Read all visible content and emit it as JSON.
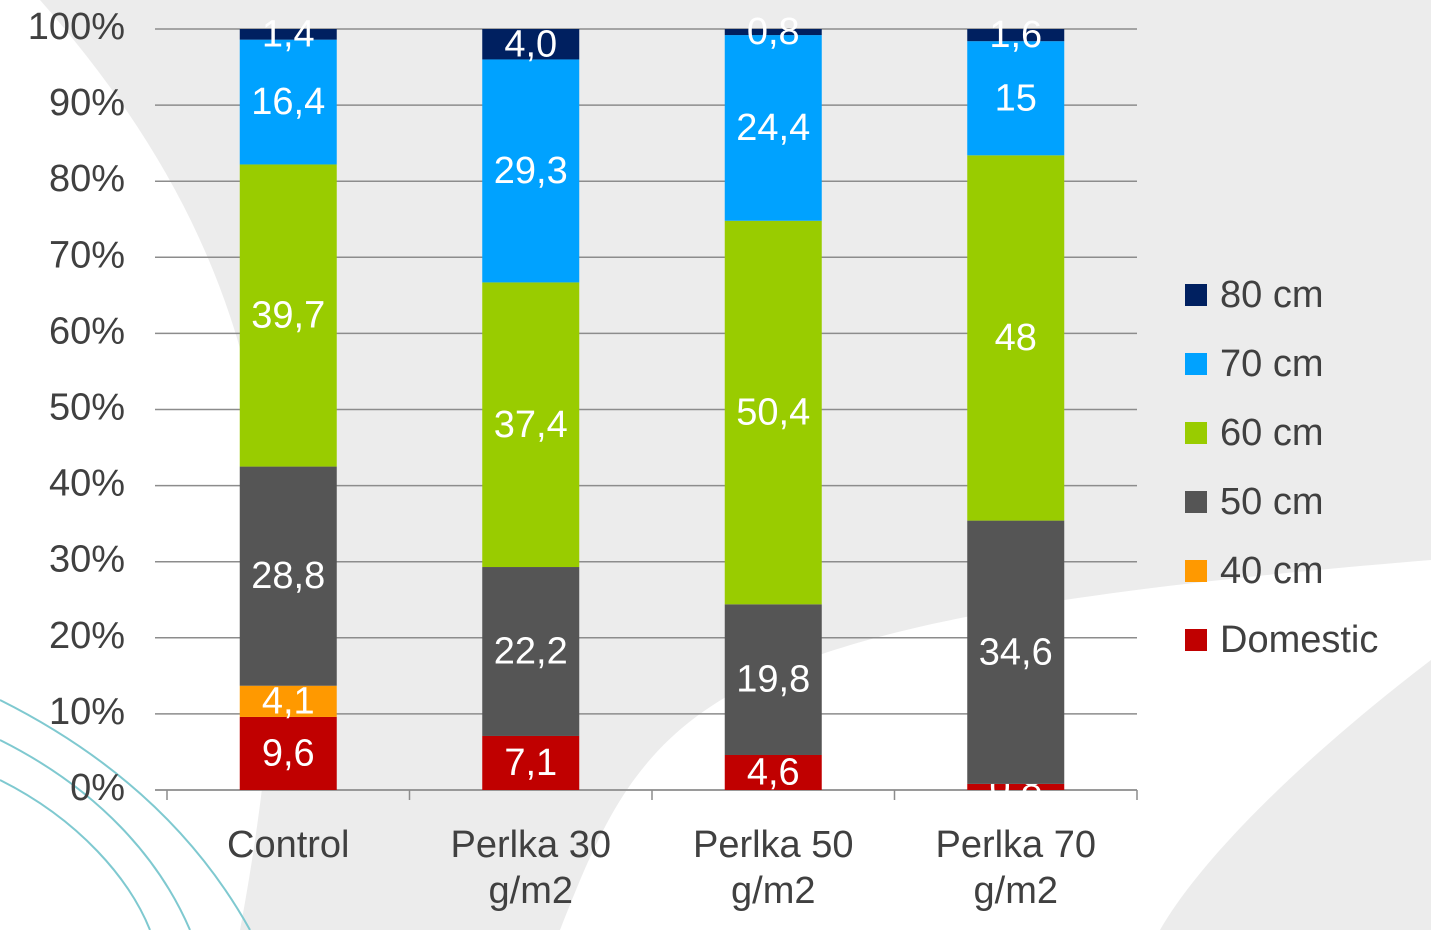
{
  "chart_data": {
    "type": "stacked_bar_100",
    "categories": [
      "Control",
      "Perlka 30 g/m2",
      "Perlka 50 g/m2",
      "Perlka 70 g/m2"
    ],
    "series": [
      {
        "name": "Domestic",
        "color": "#c00000",
        "values": [
          9.6,
          7.1,
          4.6,
          0.8
        ],
        "value_labels": [
          "9,6",
          "7,1",
          "4,6",
          "0,8"
        ]
      },
      {
        "name": "40 cm",
        "color": "#ff9900",
        "values": [
          4.1,
          null,
          null,
          null
        ],
        "value_labels": [
          "4,1",
          null,
          null,
          null
        ]
      },
      {
        "name": "50 cm",
        "color": "#555555",
        "values": [
          28.8,
          22.2,
          19.8,
          34.6
        ],
        "value_labels": [
          "28,8",
          "22,2",
          "19,8",
          "34,6"
        ]
      },
      {
        "name": "60 cm",
        "color": "#99cc00",
        "values": [
          39.7,
          37.4,
          50.4,
          48
        ],
        "value_labels": [
          "39,7",
          "37,4",
          "50,4",
          "48"
        ]
      },
      {
        "name": "70 cm",
        "color": "#00a2ff",
        "values": [
          16.4,
          29.3,
          24.4,
          15
        ],
        "value_labels": [
          "16,4",
          "29,3",
          "24,4",
          "15"
        ]
      },
      {
        "name": "80 cm",
        "color": "#002060",
        "values": [
          1.4,
          4.0,
          0.8,
          1.6
        ],
        "value_labels": [
          "1,4",
          "4,0",
          "0,8",
          "1,6"
        ]
      }
    ],
    "ylim": [
      0,
      100
    ],
    "yticks": [
      {
        "value": 0,
        "label": "0%"
      },
      {
        "value": 10,
        "label": "10%"
      },
      {
        "value": 20,
        "label": "20%"
      },
      {
        "value": 30,
        "label": "30%"
      },
      {
        "value": 40,
        "label": "40%"
      },
      {
        "value": 50,
        "label": "50%"
      },
      {
        "value": 60,
        "label": "60%"
      },
      {
        "value": 70,
        "label": "70%"
      },
      {
        "value": 80,
        "label": "80%"
      },
      {
        "value": 90,
        "label": "90%"
      },
      {
        "value": 100,
        "label": "100%"
      }
    ],
    "grid": true,
    "legend": "right"
  }
}
